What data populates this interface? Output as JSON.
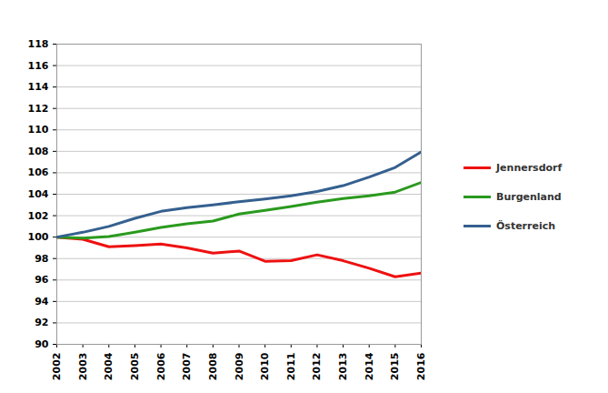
{
  "chart_data": {
    "type": "line",
    "x": [
      2002,
      2003,
      2004,
      2005,
      2006,
      2007,
      2008,
      2009,
      2010,
      2011,
      2012,
      2013,
      2014,
      2015,
      2016
    ],
    "series": [
      {
        "name": "Jennersdorf",
        "color": "#ee1111",
        "values": [
          100,
          99.8,
          99.1,
          99.2,
          99.35,
          99.0,
          98.5,
          98.7,
          97.75,
          97.8,
          98.35,
          97.8,
          97.1,
          96.3,
          96.65
        ]
      },
      {
        "name": "Burgenland",
        "color": "#2a9a1e",
        "values": [
          100,
          99.9,
          100.05,
          100.45,
          100.9,
          101.25,
          101.5,
          102.15,
          102.5,
          102.85,
          103.25,
          103.6,
          103.85,
          104.2,
          105.1
        ]
      },
      {
        "name": "Österreich",
        "color": "#35608f",
        "values": [
          100,
          100.45,
          101.0,
          101.75,
          102.4,
          102.75,
          103.0,
          103.3,
          103.55,
          103.85,
          104.25,
          104.8,
          105.6,
          106.5,
          107.95
        ]
      }
    ],
    "xlim": [
      2002,
      2016
    ],
    "xticks": [
      2002,
      2003,
      2004,
      2005,
      2006,
      2007,
      2008,
      2009,
      2010,
      2011,
      2012,
      2013,
      2014,
      2015,
      2016
    ],
    "ylim": [
      90,
      118
    ],
    "yticks": [
      90,
      92,
      94,
      96,
      98,
      100,
      102,
      104,
      106,
      108,
      110,
      112,
      114,
      116,
      118
    ],
    "grid": true,
    "legend": "right"
  }
}
